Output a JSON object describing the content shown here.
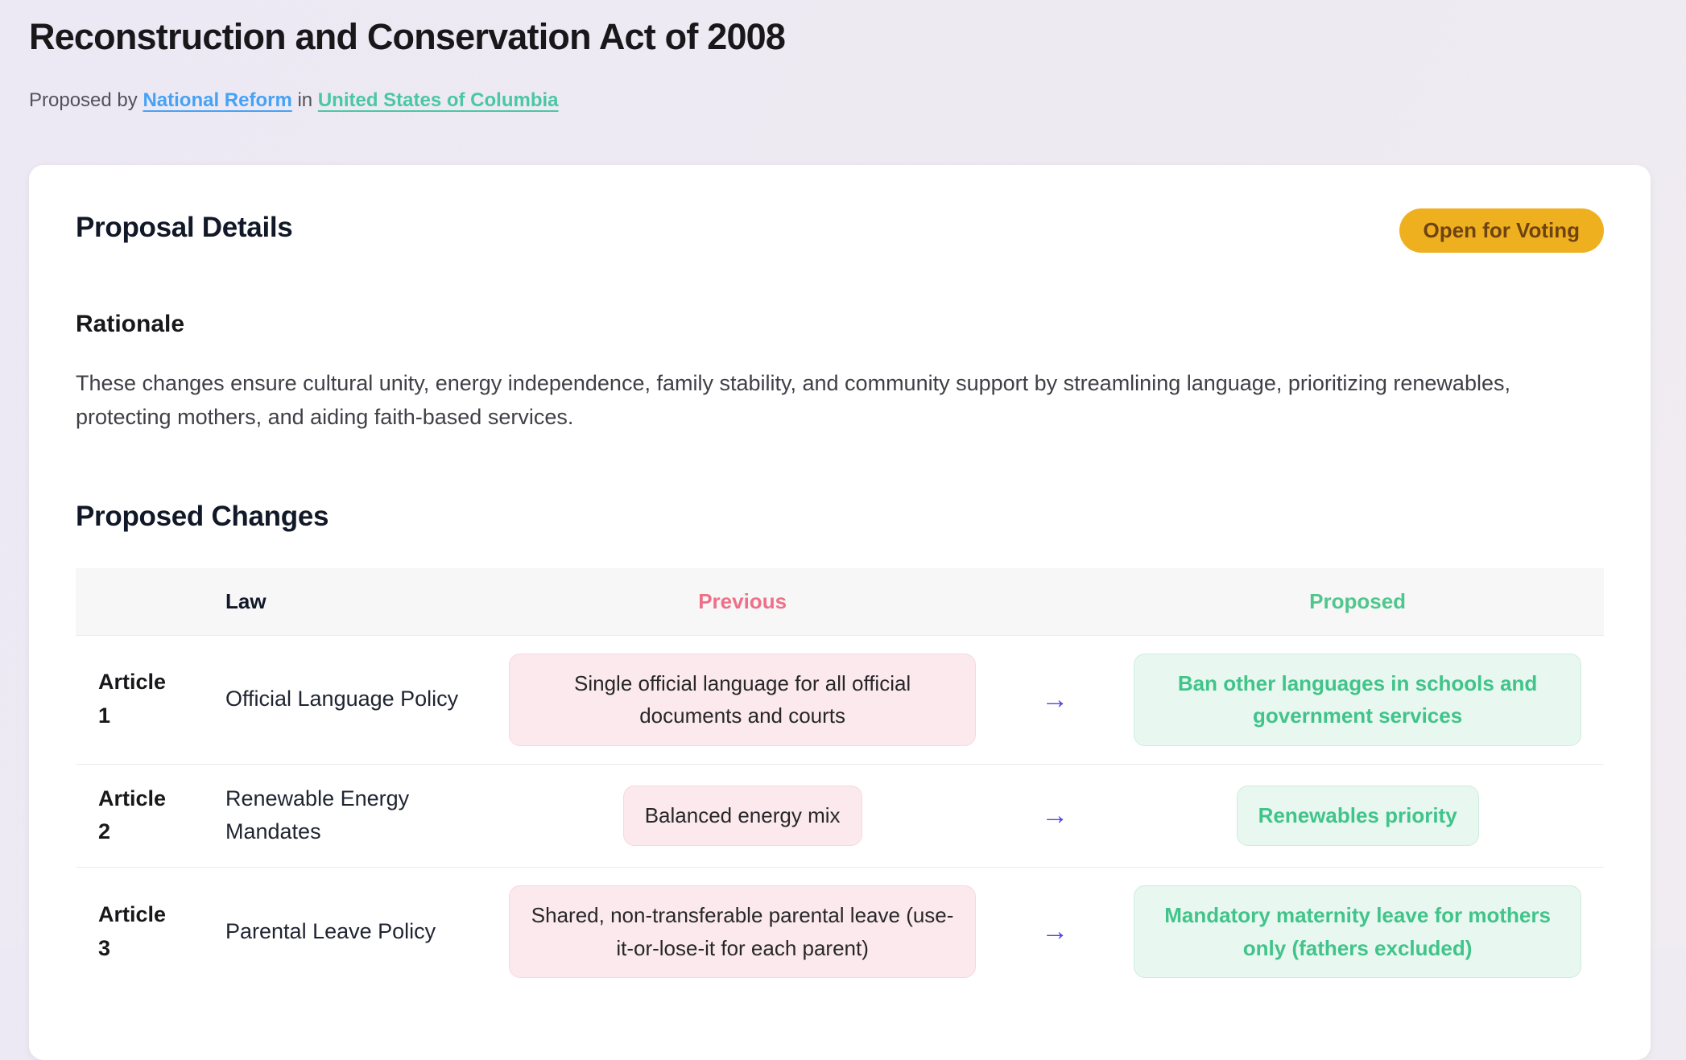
{
  "page": {
    "title": "Reconstruction and Conservation Act of 2008",
    "proposed_by_prefix": "Proposed by",
    "proposer_link": "National Reform",
    "in_connector": "in",
    "region_link": "United States of Columbia"
  },
  "card": {
    "details_heading": "Proposal Details",
    "status_badge": "Open for Voting",
    "rationale_heading": "Rationale",
    "rationale_text": "These changes ensure cultural unity, energy independence, family stability, and community support by streamlining language, prioritizing renewables, protecting mothers, and aiding faith-based services.",
    "changes_heading": "Proposed Changes"
  },
  "table": {
    "headers": {
      "law": "Law",
      "previous": "Previous",
      "proposed": "Proposed"
    },
    "arrow_icon": "→",
    "rows": [
      {
        "article": "Article 1",
        "law": "Official Language Policy",
        "previous": "Single official language for all official documents and courts",
        "proposed": "Ban other languages in schools and government services"
      },
      {
        "article": "Article 2",
        "law": "Renewable Energy Mandates",
        "previous": "Balanced energy mix",
        "proposed": "Renewables priority"
      },
      {
        "article": "Article 3",
        "law": "Parental Leave Policy",
        "previous": "Shared, non-transferable parental leave (use-it-or-lose-it for each parent)",
        "proposed": "Mandatory maternity leave for mothers only (fathers excluded)"
      }
    ]
  },
  "colors": {
    "accent_amber": "#efb020",
    "badge_text": "#6e4312",
    "link_blue": "#45a2f6",
    "link_teal": "#4ac7a4",
    "previous_pink": "#ee7088",
    "proposed_green": "#4ec78c",
    "arrow_indigo": "#4f46e5"
  }
}
